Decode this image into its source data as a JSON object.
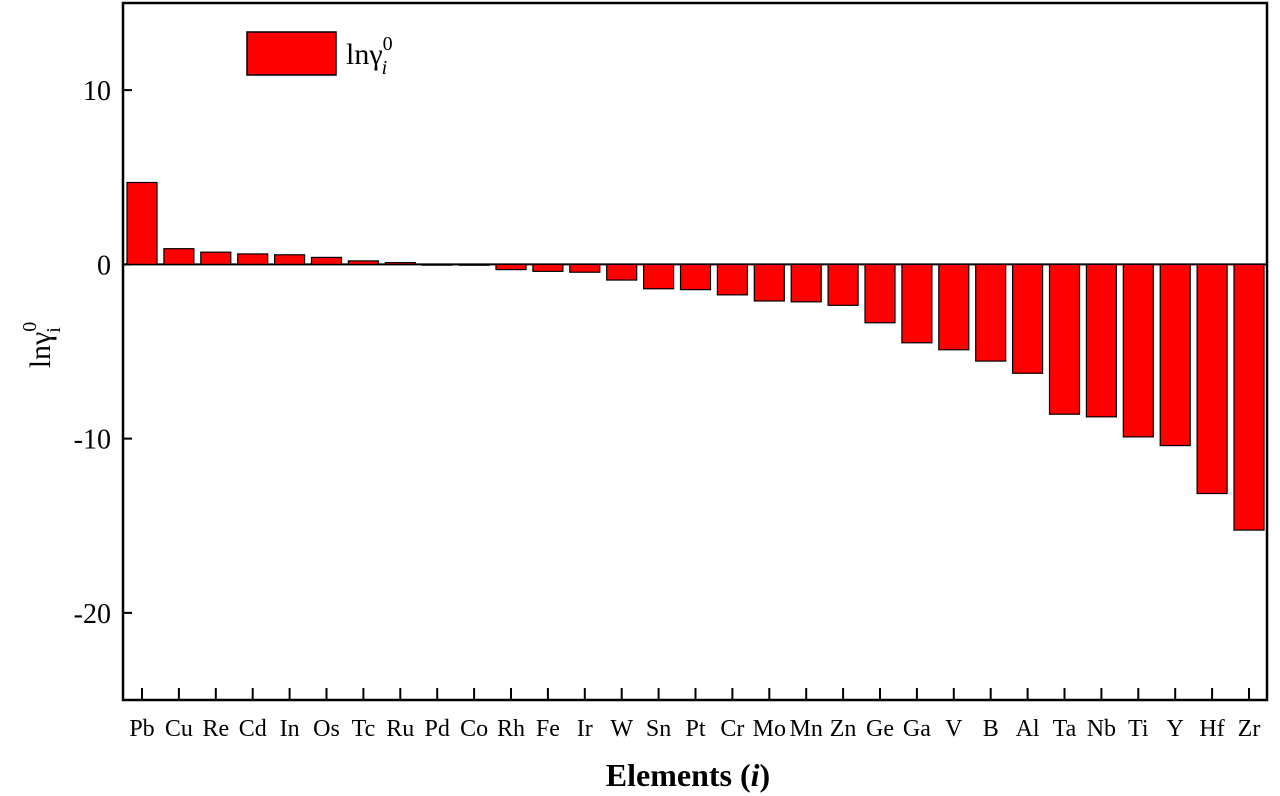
{
  "chart_data": {
    "type": "bar",
    "categories": [
      "Pb",
      "Cu",
      "Re",
      "Cd",
      "In",
      "Os",
      "Tc",
      "Ru",
      "Pd",
      "Co",
      "Rh",
      "Fe",
      "Ir",
      "W",
      "Sn",
      "Pt",
      "Cr",
      "Mo",
      "Mn",
      "Zn",
      "Ge",
      "Ga",
      "V",
      "B",
      "Al",
      "Ta",
      "Nb",
      "Ti",
      "Y",
      "Hf",
      "Zr"
    ],
    "series": [
      {
        "name": "lnγ",
        "values": [
          4.7,
          0.9,
          0.7,
          0.6,
          0.55,
          0.4,
          0.2,
          0.1,
          0.0,
          -0.05,
          -0.3,
          -0.4,
          -0.45,
          -0.9,
          -1.4,
          -1.45,
          -1.75,
          -2.1,
          -2.15,
          -2.35,
          -3.35,
          -4.5,
          -4.9,
          -5.55,
          -6.25,
          -8.6,
          -8.75,
          -9.9,
          -10.4,
          -13.15,
          -15.25
        ],
        "color": "#ff0000"
      }
    ],
    "xlabel": "Elements",
    "xlabel_var": "i",
    "ylabel": "lnγ",
    "ylabel_sub": "i",
    "ylabel_sup": "0",
    "legend_label": "lnγ",
    "legend_sub": "i",
    "legend_sup": "0",
    "legend_position": "top-left",
    "ylim": [
      -25,
      15
    ],
    "yticks": [
      10,
      0,
      -10,
      -20
    ],
    "ytick_labels": [
      "10",
      "0",
      "-10",
      "-20"
    ],
    "grid": false
  }
}
